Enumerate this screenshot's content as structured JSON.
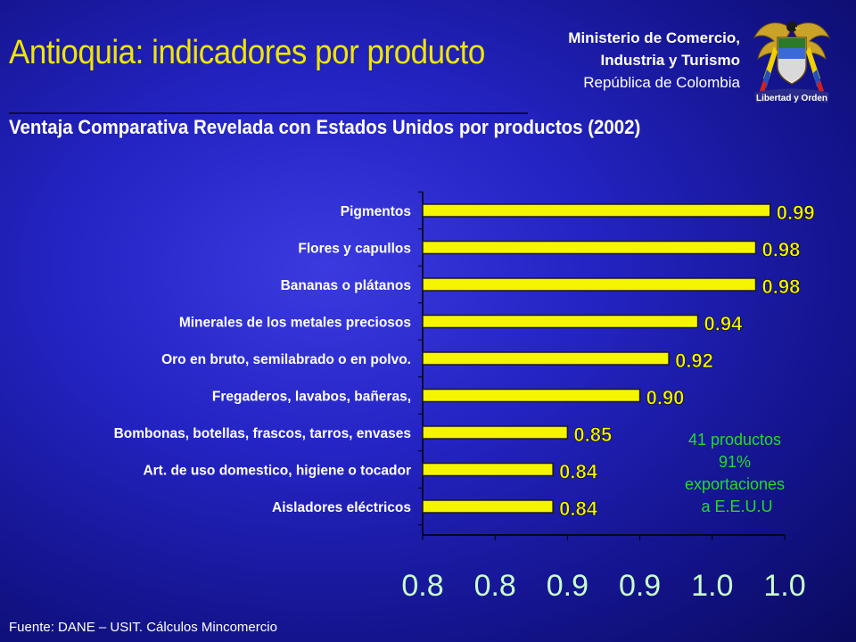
{
  "header": {
    "title": "Antioquia: indicadores por producto",
    "ministry_line1": "Ministerio de Comercio,",
    "ministry_line2": "Industria y Turismo",
    "ministry_line3": "República de Colombia",
    "seal_caption": "Libertad y Orden"
  },
  "chart_data": {
    "type": "bar",
    "orientation": "horizontal",
    "title": "Ventaja Comparativa Revelada con Estados Unidos por productos (2002)",
    "categories": [
      "Pigmentos",
      "Flores y capullos",
      "Bananas o plátanos",
      "Minerales de los metales preciosos",
      "Oro en bruto, semilabrado o en polvo.",
      "Fregaderos, lavabos,  bañeras,",
      "Bombonas, botellas, frascos, tarros, envases",
      "Art. de uso domestico, higiene o tocador",
      "Aisladores eléctricos"
    ],
    "values": [
      0.99,
      0.98,
      0.98,
      0.94,
      0.92,
      0.9,
      0.85,
      0.84,
      0.84
    ],
    "value_labels": [
      "0.99",
      "0.98",
      "0.98",
      "0.94",
      "0.92",
      "0.90",
      "0.85",
      "0.84",
      "0.84"
    ],
    "xlim": [
      0.75,
      1.0
    ],
    "x_ticks": [
      0.75,
      0.8,
      0.85,
      0.9,
      0.95,
      1.0
    ],
    "x_tick_labels": [
      "0.8",
      "0.8",
      "0.9",
      "0.9",
      "1.0",
      "1.0"
    ],
    "xlabel": "",
    "ylabel": "",
    "grid": false,
    "legend": "none",
    "colors": {
      "bar": "#f5f500",
      "bar_edge": "#1a1a1a",
      "value_label": "#f5f500",
      "tick_label": "#c8ffc8"
    }
  },
  "annotation": {
    "line1": "41 productos",
    "line2": "91%",
    "line3": "exportaciones",
    "line4": " a E.E.U.U"
  },
  "footer": {
    "source": "Fuente: DANE – USIT. Cálculos Mincomercio"
  }
}
